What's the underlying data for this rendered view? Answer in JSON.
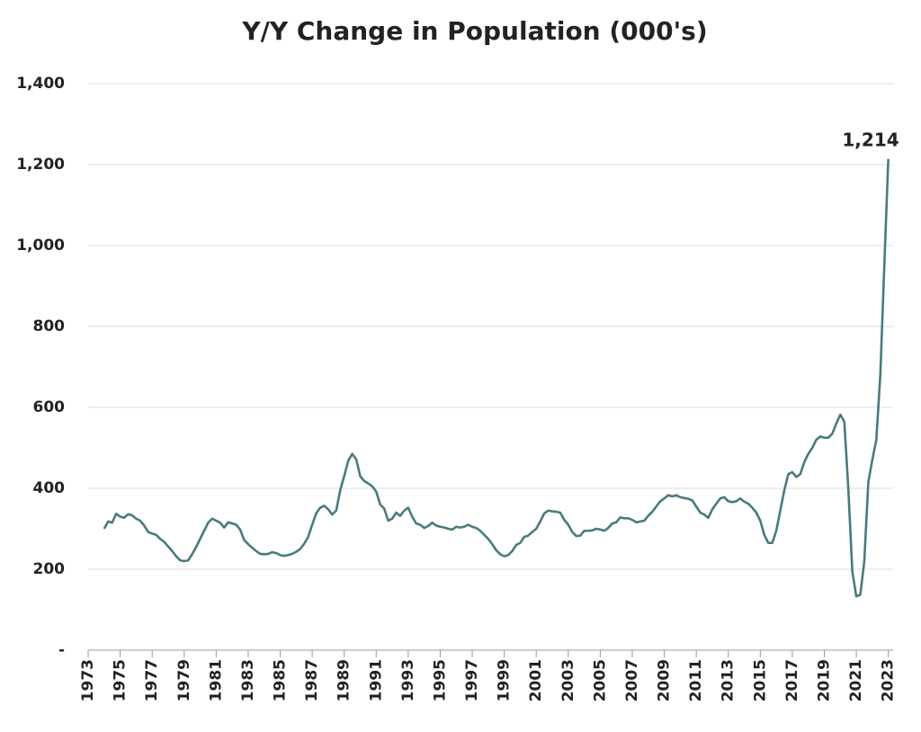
{
  "chart_data": {
    "type": "line",
    "title": "Y/Y Change in Population (000's)",
    "color": "#4a7a7b",
    "annotation": "1,214",
    "grid": true,
    "xlim": [
      1973,
      2023.3
    ],
    "ylim": [
      0,
      1400
    ],
    "xticks": [
      1973,
      1975,
      1977,
      1979,
      1981,
      1983,
      1985,
      1987,
      1989,
      1991,
      1993,
      1995,
      1997,
      1999,
      2001,
      2003,
      2005,
      2007,
      2009,
      2011,
      2013,
      2015,
      2017,
      2019,
      2021,
      2023
    ],
    "yticks": [
      {
        "value": 0,
        "label": "-"
      },
      200,
      400,
      600,
      800,
      {
        "value": 1000,
        "label": "1,000"
      },
      {
        "value": 1200,
        "label": "1,200"
      },
      {
        "value": 1400,
        "label": "1,400"
      }
    ],
    "x": [
      1974,
      1974.25,
      1974.5,
      1974.75,
      1975,
      1975.25,
      1975.5,
      1975.75,
      1976,
      1976.25,
      1976.5,
      1976.75,
      1977,
      1977.25,
      1977.5,
      1977.75,
      1978,
      1978.25,
      1978.5,
      1978.75,
      1979,
      1979.25,
      1979.5,
      1979.75,
      1980,
      1980.25,
      1980.5,
      1980.75,
      1981,
      1981.25,
      1981.5,
      1981.75,
      1982,
      1982.25,
      1982.5,
      1982.75,
      1983,
      1983.25,
      1983.5,
      1983.75,
      1984,
      1984.25,
      1984.5,
      1984.75,
      1985,
      1985.25,
      1985.5,
      1985.75,
      1986,
      1986.25,
      1986.5,
      1986.75,
      1987,
      1987.25,
      1987.5,
      1987.75,
      1988,
      1988.25,
      1988.5,
      1988.75,
      1989,
      1989.25,
      1989.5,
      1989.75,
      1990,
      1990.25,
      1990.5,
      1990.75,
      1991,
      1991.25,
      1991.5,
      1991.75,
      1992,
      1992.25,
      1992.5,
      1992.75,
      1993,
      1993.25,
      1993.5,
      1993.75,
      1994,
      1994.25,
      1994.5,
      1994.75,
      1995,
      1995.25,
      1995.5,
      1995.75,
      1996,
      1996.25,
      1996.5,
      1996.75,
      1997,
      1997.25,
      1997.5,
      1997.75,
      1998,
      1998.25,
      1998.5,
      1998.75,
      1999,
      1999.25,
      1999.5,
      1999.75,
      2000,
      2000.25,
      2000.5,
      2000.75,
      2001,
      2001.25,
      2001.5,
      2001.75,
      2002,
      2002.25,
      2002.5,
      2002.75,
      2003,
      2003.25,
      2003.5,
      2003.75,
      2004,
      2004.25,
      2004.5,
      2004.75,
      2005,
      2005.25,
      2005.5,
      2005.75,
      2006,
      2006.25,
      2006.5,
      2006.75,
      2007,
      2007.25,
      2007.5,
      2007.75,
      2008,
      2008.25,
      2008.5,
      2008.75,
      2009,
      2009.25,
      2009.5,
      2009.75,
      2010,
      2010.25,
      2010.5,
      2010.75,
      2011,
      2011.25,
      2011.5,
      2011.75,
      2012,
      2012.25,
      2012.5,
      2012.75,
      2013,
      2013.25,
      2013.5,
      2013.75,
      2014,
      2014.25,
      2014.5,
      2014.75,
      2015,
      2015.25,
      2015.5,
      2015.75,
      2016,
      2016.25,
      2016.5,
      2016.75,
      2017,
      2017.25,
      2017.5,
      2017.75,
      2018,
      2018.25,
      2018.5,
      2018.75,
      2019,
      2019.25,
      2019.5,
      2019.75,
      2020,
      2020.25,
      2020.5,
      2020.75,
      2021,
      2021.25,
      2021.5,
      2021.75,
      2022,
      2022.25,
      2022.5,
      2022.75,
      2023
    ],
    "values": [
      300,
      318,
      315,
      337,
      330,
      327,
      336,
      333,
      325,
      320,
      308,
      292,
      288,
      285,
      275,
      268,
      256,
      245,
      232,
      222,
      220,
      222,
      237,
      255,
      275,
      295,
      315,
      325,
      320,
      315,
      303,
      316,
      313,
      310,
      298,
      272,
      262,
      253,
      245,
      238,
      237,
      238,
      242,
      240,
      235,
      233,
      235,
      238,
      243,
      250,
      263,
      280,
      310,
      338,
      352,
      357,
      348,
      335,
      345,
      395,
      430,
      468,
      485,
      472,
      430,
      418,
      412,
      405,
      392,
      360,
      350,
      320,
      325,
      340,
      332,
      345,
      352,
      330,
      313,
      310,
      302,
      307,
      315,
      308,
      305,
      303,
      300,
      298,
      305,
      303,
      305,
      310,
      305,
      302,
      295,
      285,
      275,
      262,
      247,
      237,
      232,
      235,
      245,
      260,
      265,
      280,
      283,
      292,
      300,
      318,
      338,
      345,
      343,
      342,
      340,
      322,
      310,
      292,
      282,
      283,
      295,
      295,
      296,
      300,
      298,
      295,
      302,
      313,
      316,
      328,
      326,
      326,
      322,
      316,
      318,
      320,
      332,
      342,
      355,
      368,
      375,
      383,
      380,
      383,
      378,
      376,
      374,
      370,
      355,
      340,
      335,
      327,
      348,
      362,
      375,
      378,
      368,
      366,
      368,
      375,
      367,
      362,
      352,
      340,
      320,
      285,
      265,
      265,
      295,
      345,
      395,
      435,
      440,
      428,
      435,
      465,
      485,
      500,
      520,
      528,
      525,
      525,
      535,
      560,
      582,
      565,
      400,
      195,
      133,
      137,
      220,
      415,
      470,
      520,
      680,
      950,
      1214
    ]
  }
}
